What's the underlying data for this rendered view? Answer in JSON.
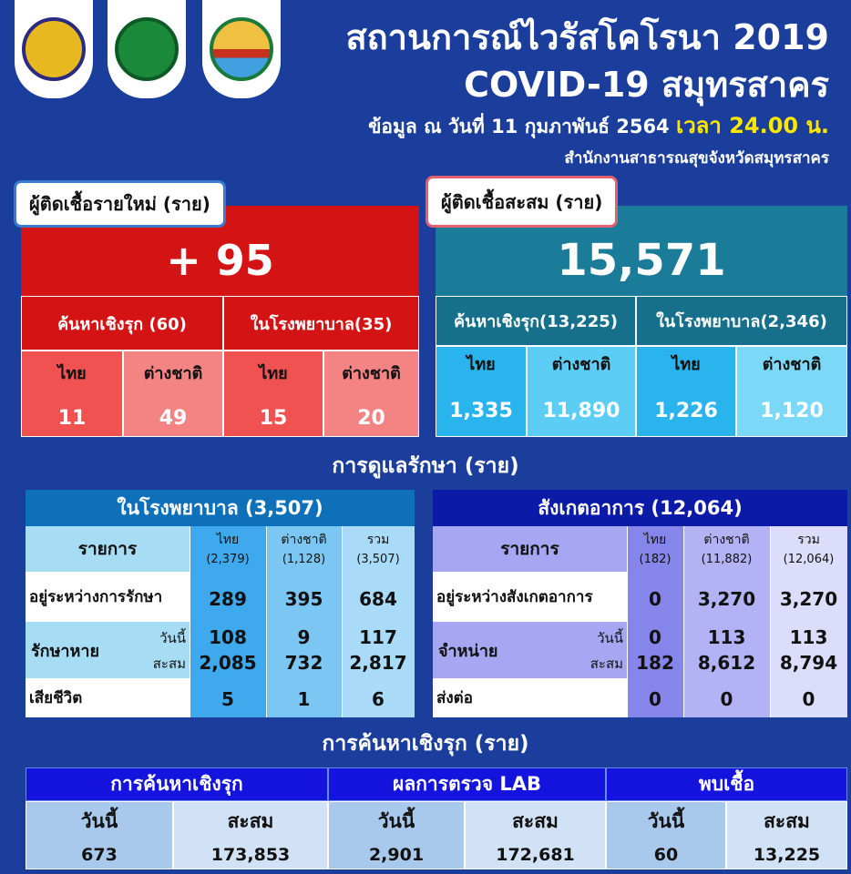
{
  "logos": [
    "provincial-seal",
    "ministry-of-public-health",
    "samut-sakhon-seal"
  ],
  "header": {
    "title1": "สถานการณ์ไวรัสโคโรนา 2019",
    "title2": "COVID-19 สมุทรสาคร",
    "date": "ข้อมูล ณ วันที่ 11 กุมภาพันธ์ 2564",
    "time": "เวลา 24.00 น.",
    "org": "สำนักงานสาธารณสุขจังหวัดสมุทรสาคร"
  },
  "new_cases": {
    "label": "ผู้ติดเชื้อรายใหม่ (ราย)",
    "total": "+ 95",
    "groups": [
      "ค้นหาเชิงรุก (60)",
      "ในโรงพยาบาล(35)"
    ],
    "cells": [
      {
        "label": "ไทย",
        "value": "11"
      },
      {
        "label": "ต่างชาติ",
        "value": "49"
      },
      {
        "label": "ไทย",
        "value": "15"
      },
      {
        "label": "ต่างชาติ",
        "value": "20"
      }
    ]
  },
  "cumulative": {
    "label": "ผู้ติดเชื้อสะสม (ราย)",
    "total": "15,571",
    "groups": [
      "ค้นหาเชิงรุก(13,225)",
      "ในโรงพยาบาล(2,346)"
    ],
    "cells": [
      {
        "label": "ไทย",
        "value": "1,335"
      },
      {
        "label": "ต่างชาติ",
        "value": "11,890"
      },
      {
        "label": "ไทย",
        "value": "1,226"
      },
      {
        "label": "ต่างชาติ",
        "value": "1,120"
      }
    ]
  },
  "care_title": "การดูแลรักษา (ราย)",
  "hospital": {
    "title": "ในโรงพยาบาล (3,507)",
    "item_header": "รายการ",
    "cols": [
      [
        "ไทย",
        "(2,379)"
      ],
      [
        "ต่างชาติ",
        "(1,128)"
      ],
      [
        "รวม",
        "(3,507)"
      ]
    ],
    "r1": {
      "label": "อยู่ระหว่างการรักษา",
      "values": [
        "289",
        "395",
        "684"
      ]
    },
    "r2": {
      "label": "รักษาหาย",
      "today": "วันนี้",
      "cum": "สะสม",
      "today_values": [
        "108",
        "9",
        "117"
      ],
      "cum_values": [
        "2,085",
        "732",
        "2,817"
      ]
    },
    "r3": {
      "label": "เสียชีวิต",
      "values": [
        "5",
        "1",
        "6"
      ]
    }
  },
  "observe": {
    "title": "สังเกตอาการ (12,064)",
    "item_header": "รายการ",
    "cols": [
      [
        "ไทย",
        "(182)"
      ],
      [
        "ต่างชาติ",
        "(11,882)"
      ],
      [
        "รวม",
        "(12,064)"
      ]
    ],
    "r1": {
      "label": "อยู่ระหว่างสังเกตอาการ",
      "values": [
        "0",
        "3,270",
        "3,270"
      ]
    },
    "r2": {
      "label": "จำหน่าย",
      "today": "วันนี้",
      "cum": "สะสม",
      "today_values": [
        "0",
        "113",
        "113"
      ],
      "cum_values": [
        "182",
        "8,612",
        "8,794"
      ]
    },
    "r3": {
      "label": "ส่งต่อ",
      "values": [
        "0",
        "0",
        "0"
      ]
    }
  },
  "search_title": "การค้นหาเชิงรุก (ราย)",
  "search": [
    {
      "title": "การค้นหาเชิงรุก",
      "today": "วันนี้",
      "cum": "สะสม",
      "today_value": "673",
      "cum_value": "173,853"
    },
    {
      "title": "ผลการตรวจ LAB",
      "today": "วันนี้",
      "cum": "สะสม",
      "today_value": "2,901",
      "cum_value": "172,681"
    },
    {
      "title": "พบเชื้อ",
      "today": "วันนี้",
      "cum": "สะสม",
      "today_value": "60",
      "cum_value": "13,225"
    }
  ]
}
